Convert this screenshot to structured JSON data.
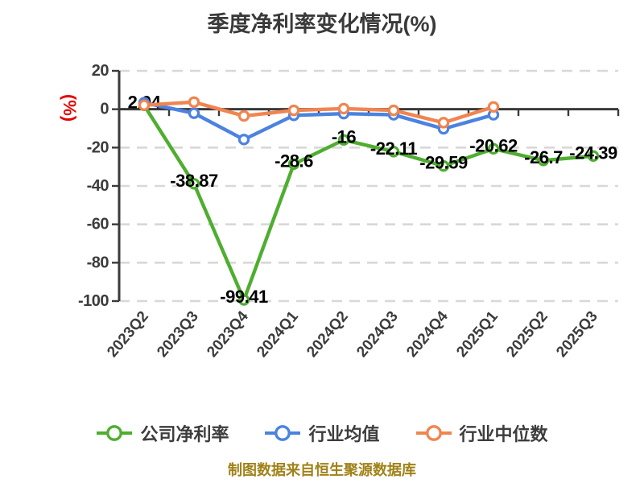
{
  "footer": "制图数据来自恒生聚源数据库",
  "colors": {
    "company_green": "#4fae30",
    "industry_mean_blue": "#4c82e0",
    "industry_median_orange": "#f08550",
    "axis": "#3a3a3a",
    "grid": "#d8d8d8",
    "title_text": "#3a3a3a",
    "tick_text": "#3c3c3c",
    "data_label_text": "#000000",
    "y_unit_red": "#e60000",
    "footer_text": "#a08218"
  },
  "chart_data": {
    "type": "line",
    "title": "季度净利率变化情况(%)",
    "y_unit": "(%)",
    "xlabel": "",
    "ylabel": "(%)",
    "ylim": [
      -100,
      20
    ],
    "y_ticks": [
      20,
      0,
      -20,
      -40,
      -60,
      -80,
      -100
    ],
    "grid": "horizontal-dashed",
    "legend_position": "bottom",
    "x_label_rotation": -50,
    "categories": [
      "2023Q2",
      "2023Q3",
      "2023Q4",
      "2024Q1",
      "2024Q2",
      "2024Q3",
      "2024Q4",
      "2025Q1",
      "2025Q2",
      "2025Q3"
    ],
    "series": [
      {
        "id": "company-net-margin",
        "name": "公司净利率",
        "color": "#4fae30",
        "show_labels": true,
        "values": [
          2.04,
          -38.87,
          -99.41,
          -28.6,
          -16,
          -22.11,
          -29.59,
          -20.62,
          -26.7,
          -24.39
        ]
      },
      {
        "id": "industry-average",
        "name": "行业均值",
        "color": "#4c82e0",
        "show_labels": false,
        "values": [
          3.4,
          -2.1,
          -15.8,
          -3.2,
          -2.3,
          -2.9,
          -10.2,
          -2.9,
          null,
          null
        ]
      },
      {
        "id": "industry-median",
        "name": "行业中位数",
        "color": "#f08550",
        "show_labels": false,
        "values": [
          2.1,
          3.7,
          -3.5,
          -0.6,
          0.3,
          -0.6,
          -7.0,
          1.2,
          null,
          null
        ]
      }
    ]
  }
}
